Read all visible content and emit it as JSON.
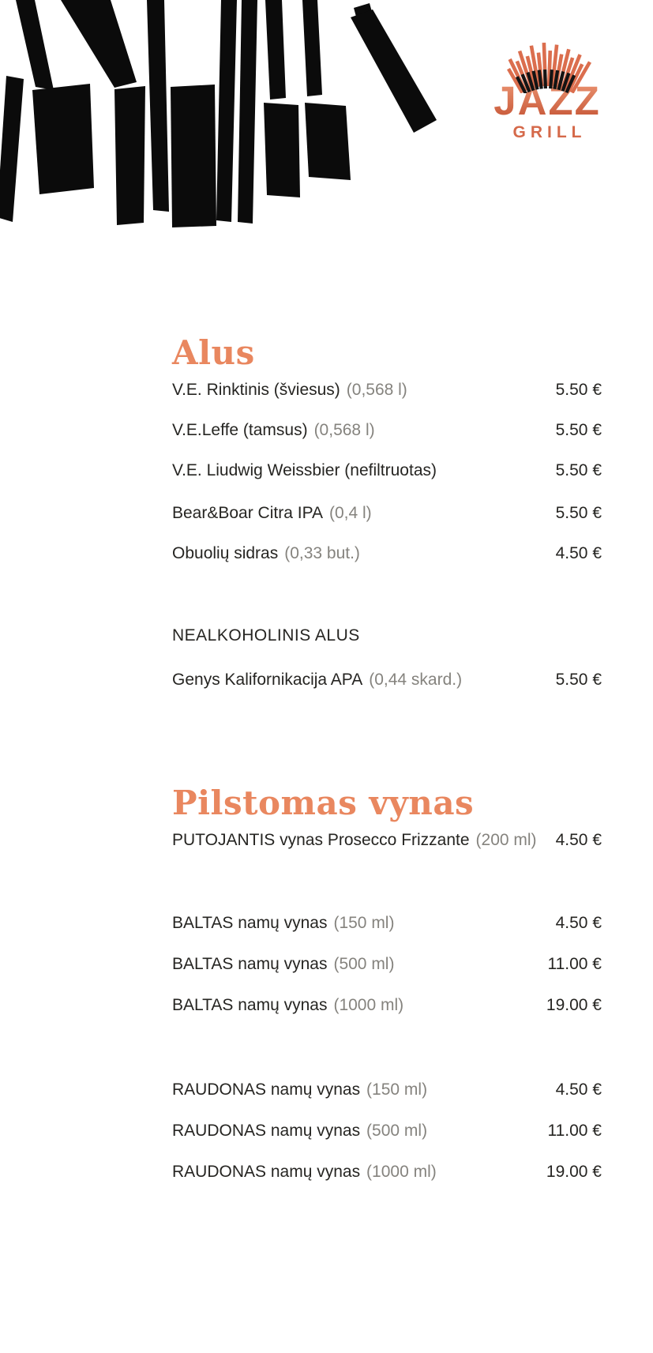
{
  "logo": {
    "title": "JAZZ",
    "subtitle": "GRILL"
  },
  "colors": {
    "accent_heading": "#E9875F",
    "logo_coral": "#D96A4A",
    "text": "#262522",
    "muted_volume": "#85837E",
    "illustration": "#0B0B0B"
  },
  "menu": {
    "sections": [
      {
        "title": "Alus",
        "groups": [
          {
            "heading": "",
            "items": [
              {
                "name": "V.E. Rinktinis (šviesus)",
                "volume": "(0,568 l)",
                "price": "5.50 €"
              },
              {
                "name": "V.E.Leffe (tamsus)",
                "volume": "(0,568 l)",
                "price": "5.50 €"
              },
              {
                "name": "V.E. Liudwig Weissbier (nefiltruotas)",
                "volume": "",
                "price": "5.50 €"
              },
              {
                "name": "Bear&Boar Citra IPA",
                "volume": "(0,4 l)",
                "price": "5.50 €"
              },
              {
                "name": "Obuolių sidras",
                "volume": "(0,33 but.)",
                "price": "4.50 €"
              }
            ]
          },
          {
            "heading": "NEALKOHOLINIS ALUS",
            "items": [
              {
                "name": "Genys Kalifornikacija APA",
                "volume": "(0,44 skard.)",
                "price": "5.50 €"
              }
            ]
          }
        ]
      },
      {
        "title": "Pilstomas vynas",
        "groups": [
          {
            "heading": "",
            "items": [
              {
                "name": "PUTOJANTIS vynas Prosecco Frizzante",
                "volume": "(200 ml)",
                "price": "4.50 €"
              }
            ]
          },
          {
            "heading": "",
            "items": [
              {
                "name": "BALTAS namų vynas",
                "volume": "(150 ml)",
                "price": "4.50 €"
              },
              {
                "name": "BALTAS namų vynas",
                "volume": "(500 ml)",
                "price": "11.00 €"
              },
              {
                "name": "BALTAS namų vynas",
                "volume": "(1000 ml)",
                "price": "19.00 €"
              }
            ]
          },
          {
            "heading": "",
            "items": [
              {
                "name": "RAUDONAS namų vynas",
                "volume": "(150 ml)",
                "price": "4.50 €"
              },
              {
                "name": "RAUDONAS namų vynas",
                "volume": "(500 ml)",
                "price": "11.00 €"
              },
              {
                "name": "RAUDONAS namų vynas",
                "volume": "(1000 ml)",
                "price": "19.00 €"
              }
            ]
          }
        ]
      }
    ]
  }
}
